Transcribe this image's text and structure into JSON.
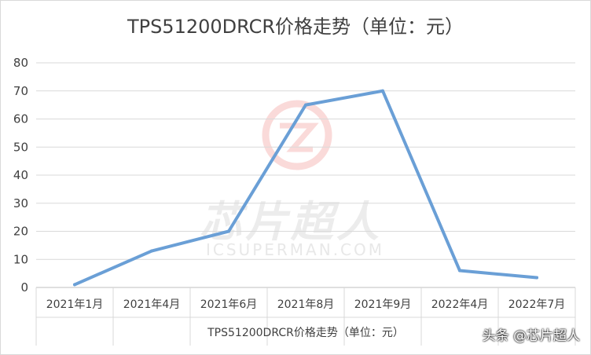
{
  "chart_data": {
    "type": "line",
    "title": "TPS51200DRCR价格走势（单位：元）",
    "xlabel": "TPS51200DRCR价格走势（单位：元）",
    "ylabel": "",
    "categories": [
      "2021年1月",
      "2021年4月",
      "2021年6月",
      "2021年8月",
      "2021年9月",
      "2022年4月",
      "2022年7月"
    ],
    "series": [
      {
        "values": [
          1,
          13,
          20,
          65,
          70,
          6,
          3.5
        ]
      }
    ],
    "ylim": [
      0,
      80
    ],
    "yticks": [
      0,
      10,
      20,
      30,
      40,
      50,
      60,
      70,
      80
    ],
    "grid": true,
    "legend": "none",
    "colors": {
      "line": "#6a9fd6",
      "grid": "#d9d9d9",
      "axis": "#bfbfbf",
      "text": "#404040"
    }
  },
  "watermark": {
    "text": "芯片超人",
    "url": "ICSUPERMAN.COM"
  },
  "credit": "头条 @芯片超人"
}
